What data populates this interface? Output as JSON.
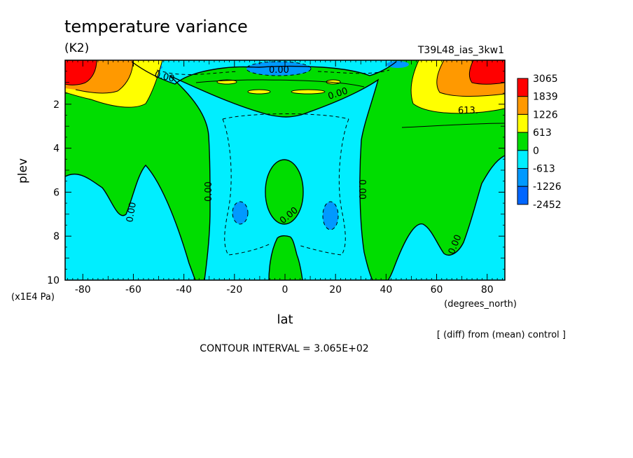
{
  "chart_data": {
    "type": "heatmap",
    "title": "temperature variance",
    "units": "(K2)",
    "run_label": "T39L48_ias_3kw1",
    "xlabel": "lat",
    "x_units": "(degrees_north)",
    "ylabel": "plev",
    "y_units": "(x1E4 Pa)",
    "diff_note": "[ (diff) from (mean) control ]",
    "contour_interval": "CONTOUR INTERVAL = 3.065E+02",
    "xlim": [
      -87,
      87
    ],
    "ylim": [
      10,
      0
    ],
    "x_ticks": [
      "-80",
      "-60",
      "-40",
      "-20",
      "0",
      "20",
      "40",
      "60",
      "80"
    ],
    "y_ticks": [
      "2",
      "4",
      "6",
      "8",
      "10"
    ],
    "colorbar": {
      "levels": [
        "3065",
        "1839",
        "1226",
        "613",
        "0",
        "-613",
        "-1226",
        "-2452"
      ],
      "colors": [
        "#ff0000",
        "#ff9900",
        "#ffff00",
        "#00dd00",
        "#00eeff",
        "#0099ff",
        "#0066ff"
      ]
    },
    "contour_labels": [
      "0.00",
      "0.00",
      "613.",
      "0.00",
      "0.00",
      "0.00",
      "0.00",
      "0.00",
      "0.00"
    ]
  }
}
